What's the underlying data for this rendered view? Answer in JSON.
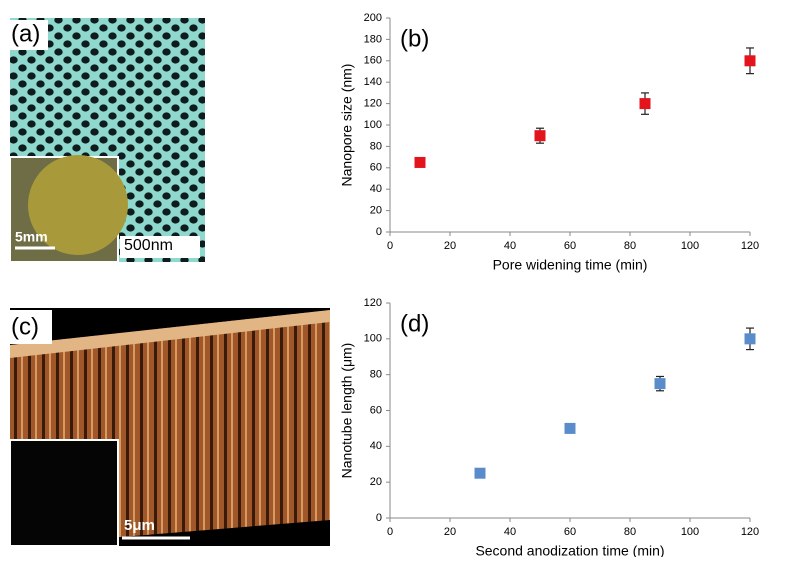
{
  "images": [
    {
      "label": "(a)",
      "scale_bars": [
        "5mm",
        "500nm"
      ]
    },
    {
      "label": "(c)",
      "scale_bars": [
        "5μm"
      ]
    }
  ],
  "chart_data": [
    {
      "type": "scatter",
      "panel_label": "(b)",
      "x_label": "Pore widening time (min)",
      "y_label": "Nanopore  size (nm)",
      "series": [
        {
          "color": "#e3141c",
          "x": [
            10,
            50,
            85,
            120
          ],
          "values": [
            65,
            90,
            120,
            160
          ],
          "errors": [
            4,
            7,
            10,
            12
          ]
        }
      ],
      "xlim": [
        0,
        120
      ],
      "xticks": [
        0,
        20,
        40,
        60,
        80,
        100,
        120
      ],
      "ylim": [
        0,
        200
      ],
      "yticks": [
        0,
        20,
        40,
        60,
        80,
        100,
        120,
        140,
        160,
        180,
        200
      ]
    },
    {
      "type": "scatter",
      "panel_label": "(d)",
      "x_label": "Second anodization time (min)",
      "y_label": "Nanotube  length (μm)",
      "series": [
        {
          "color": "#5a8ccb",
          "x": [
            30,
            60,
            90,
            120
          ],
          "values": [
            25,
            50,
            75,
            100
          ],
          "errors": [
            0,
            0,
            4,
            6
          ]
        }
      ],
      "xlim": [
        0,
        120
      ],
      "xticks": [
        0,
        20,
        40,
        60,
        80,
        100,
        120
      ],
      "ylim": [
        0,
        120
      ],
      "yticks": [
        0,
        20,
        40,
        60,
        80,
        100,
        120
      ]
    }
  ]
}
